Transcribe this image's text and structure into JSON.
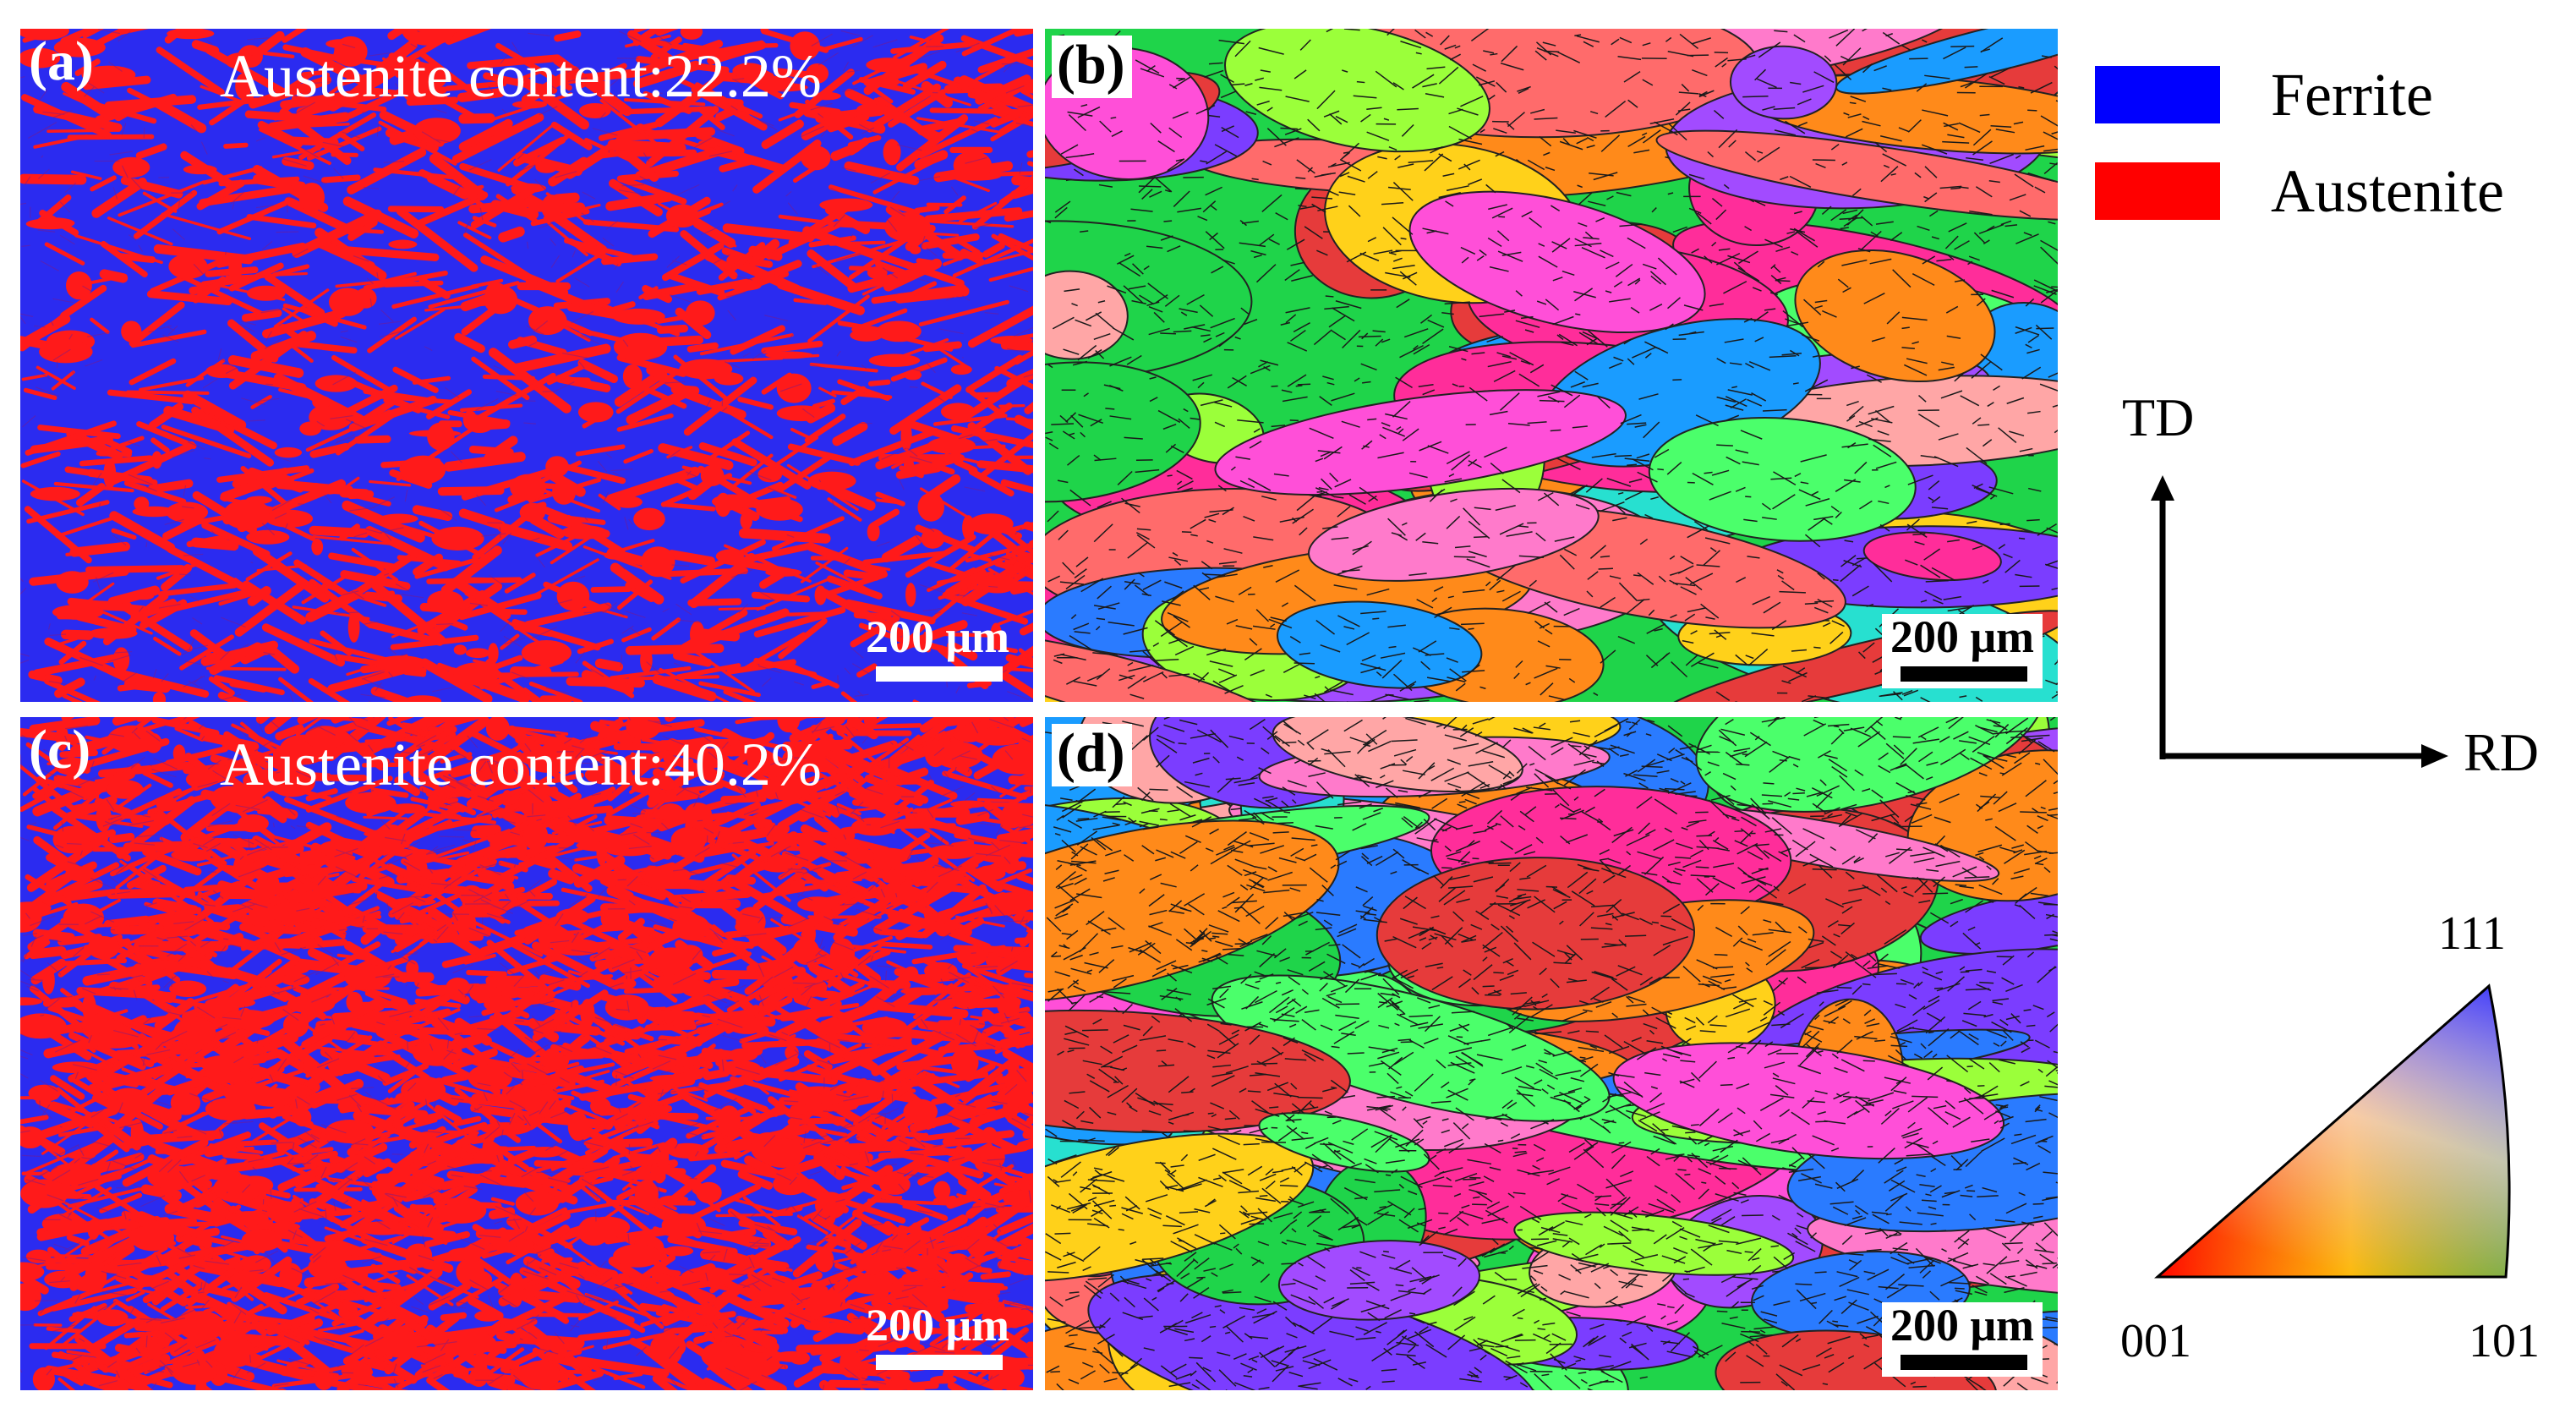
{
  "panels": {
    "a": {
      "label": "(a)",
      "content": "Austenite content:22.2%",
      "scale": "200 μm"
    },
    "b": {
      "label": "(b)",
      "scale": "200 μm"
    },
    "c": {
      "label": "(c)",
      "content": "Austenite content:40.2%",
      "scale": "200 μm"
    },
    "d": {
      "label": "(d)",
      "scale": "200 μm"
    }
  },
  "legend": {
    "items": [
      {
        "label": "Ferrite",
        "color": "#0000ff"
      },
      {
        "label": "Austenite",
        "color": "#ff0000"
      }
    ]
  },
  "axes": {
    "vertical": "TD",
    "horizontal": "RD"
  },
  "ipf": {
    "top": "111",
    "bottom_left": "001",
    "bottom_right": "101"
  },
  "colors": {
    "ferrite": "#2b2bf0",
    "austenite": "#ff1a1a",
    "grain_palette": [
      "#ff2d9a",
      "#1fd44a",
      "#2a7bff",
      "#ff8a1a",
      "#a24bff",
      "#ff6b6b",
      "#27e0d0",
      "#ffd11a",
      "#ff4fd8",
      "#7b3dff",
      "#4bff6b",
      "#ffa6a6",
      "#1a9cff",
      "#e63b3b",
      "#9bff3a",
      "#ff7acb"
    ]
  }
}
